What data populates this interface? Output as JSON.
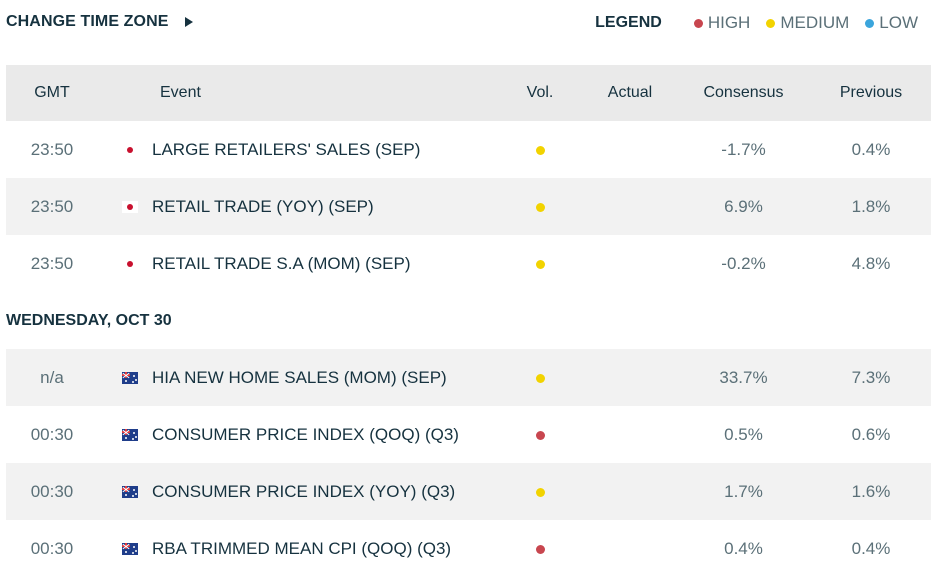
{
  "header": {
    "change_timezone_label": "CHANGE TIME ZONE",
    "legend": {
      "title": "LEGEND",
      "items": [
        {
          "label": "HIGH",
          "color": "#c8464f"
        },
        {
          "label": "MEDIUM",
          "color": "#f2d300"
        },
        {
          "label": "LOW",
          "color": "#3ba5dc"
        }
      ]
    }
  },
  "table": {
    "columns": [
      "GMT",
      "Event",
      "Vol.",
      "Actual",
      "Consensus",
      "Previous"
    ],
    "rows": [
      {
        "time": "23:50",
        "flag": "japan-flag-icon",
        "event": "LARGE RETAILERS' SALES (SEP)",
        "vol": "medium",
        "actual": "",
        "consensus": "-1.7%",
        "previous": "0.4%"
      },
      {
        "time": "23:50",
        "flag": "japan-flag-icon",
        "event": "RETAIL TRADE (YOY) (SEP)",
        "vol": "medium",
        "actual": "",
        "consensus": "6.9%",
        "previous": "1.8%"
      },
      {
        "time": "23:50",
        "flag": "japan-flag-icon",
        "event": "RETAIL TRADE S.A (MOM) (SEP)",
        "vol": "medium",
        "actual": "",
        "consensus": "-0.2%",
        "previous": "4.8%"
      }
    ],
    "day_header": "WEDNESDAY, OCT 30",
    "rows2": [
      {
        "time": "n/a",
        "flag": "australia-flag-icon",
        "event": "HIA NEW HOME SALES (MOM) (SEP)",
        "vol": "medium",
        "actual": "",
        "consensus": "33.7%",
        "previous": "7.3%"
      },
      {
        "time": "00:30",
        "flag": "australia-flag-icon",
        "event": "CONSUMER PRICE INDEX (QOQ) (Q3)",
        "vol": "high",
        "actual": "",
        "consensus": "0.5%",
        "previous": "0.6%"
      },
      {
        "time": "00:30",
        "flag": "australia-flag-icon",
        "event": "CONSUMER PRICE INDEX (YOY) (Q3)",
        "vol": "medium",
        "actual": "",
        "consensus": "1.7%",
        "previous": "1.6%"
      },
      {
        "time": "00:30",
        "flag": "australia-flag-icon",
        "event": "RBA TRIMMED MEAN CPI (QOQ) (Q3)",
        "vol": "high",
        "actual": "",
        "consensus": "0.4%",
        "previous": "0.4%"
      }
    ]
  },
  "colors": {
    "high": "#c8464f",
    "medium": "#f2d300",
    "low": "#3ba5dc"
  }
}
